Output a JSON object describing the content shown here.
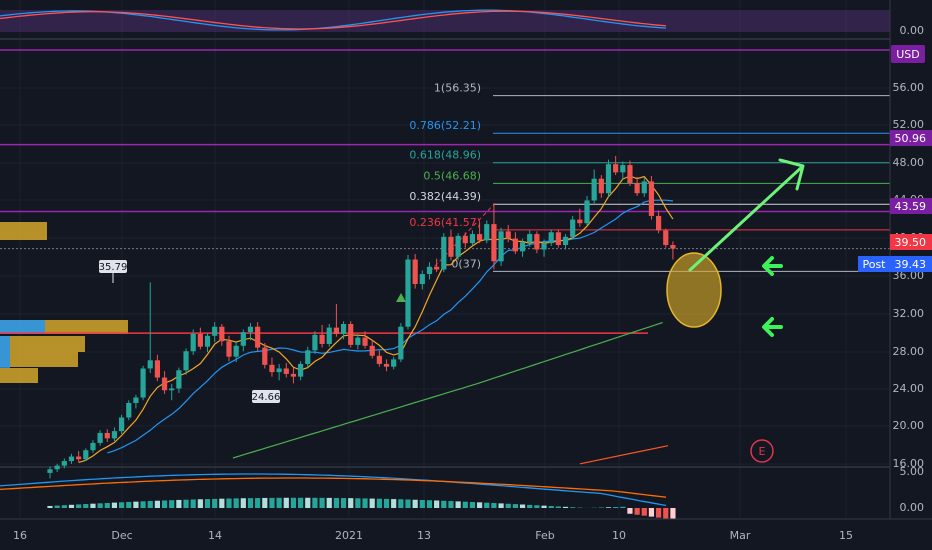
{
  "chart_data": {
    "type": "candlestick",
    "currency": "USD",
    "price_axis_ticks": [
      "56.00",
      "52.00",
      "48.00",
      "44.00",
      "40.00",
      "36.00",
      "32.00",
      "28.00",
      "24.00",
      "20.00",
      "16.00"
    ],
    "date_axis_ticks": [
      "16",
      "Dec",
      "14",
      "2021",
      "13",
      "Feb",
      "10",
      "Mar",
      "15"
    ],
    "oscillator_ticks": [
      "0.00"
    ],
    "macd_ticks": [
      "5.00",
      "0.00"
    ],
    "fib_levels": [
      {
        "label": "1(56.35)",
        "value": 56.35,
        "color": "#b2b5be"
      },
      {
        "label": "0.786(52.21)",
        "value": 52.21,
        "color": "#2196f3"
      },
      {
        "label": "0.618(48.96)",
        "value": 48.96,
        "color": "#26a69a"
      },
      {
        "label": "0.5(46.68)",
        "value": 46.68,
        "color": "#4caf50"
      },
      {
        "label": "0.382(44.39)",
        "value": 44.39,
        "color": "#d1d4dc"
      },
      {
        "label": "0.236(41.57)",
        "value": 41.57,
        "color": "#f23645"
      },
      {
        "label": "0(37)",
        "value": 37.0,
        "color": "#b2b5be"
      }
    ],
    "price_tags": [
      {
        "label": "50.96",
        "value": 50.96,
        "color": "#7b1fa2"
      },
      {
        "label": "43.59",
        "value": 43.59,
        "color": "#7b1fa2"
      },
      {
        "label": "39.50",
        "value": 39.5,
        "color": "#f23645"
      },
      {
        "label": "39.43",
        "value": 39.43,
        "color": "#2962ff",
        "prefix": "Post"
      }
    ],
    "annotations": {
      "high": "35.79",
      "low": "24.66",
      "earnings": "E"
    },
    "candles": [
      [
        14.8,
        15.5,
        14.2,
        15.2
      ],
      [
        15.2,
        15.8,
        14.9,
        15.6
      ],
      [
        15.6,
        16.4,
        15.3,
        16.1
      ],
      [
        16.1,
        16.9,
        15.8,
        16.6
      ],
      [
        16.6,
        17.2,
        16.0,
        16.3
      ],
      [
        16.3,
        17.5,
        16.1,
        17.3
      ],
      [
        17.3,
        18.4,
        17.0,
        18.1
      ],
      [
        18.1,
        19.5,
        17.8,
        19.2
      ],
      [
        19.2,
        19.6,
        18.2,
        18.6
      ],
      [
        18.6,
        19.8,
        18.3,
        19.4
      ],
      [
        19.4,
        21.2,
        19.1,
        20.9
      ],
      [
        20.9,
        22.8,
        20.6,
        22.5
      ],
      [
        22.5,
        23.4,
        21.9,
        23.1
      ],
      [
        23.1,
        26.6,
        22.8,
        26.3
      ],
      [
        26.3,
        35.79,
        25.8,
        27.2
      ],
      [
        27.2,
        27.8,
        24.9,
        25.3
      ],
      [
        25.3,
        26.0,
        23.5,
        23.9
      ],
      [
        23.9,
        24.6,
        22.8,
        24.1
      ],
      [
        24.1,
        26.4,
        23.6,
        26.1
      ],
      [
        26.1,
        28.5,
        25.6,
        28.2
      ],
      [
        28.2,
        30.6,
        27.8,
        30.1
      ],
      [
        30.1,
        30.8,
        28.4,
        28.7
      ],
      [
        28.7,
        30.2,
        28.1,
        29.9
      ],
      [
        29.9,
        31.4,
        29.2,
        30.9
      ],
      [
        30.9,
        31.2,
        28.8,
        29.3
      ],
      [
        29.3,
        29.9,
        27.1,
        27.6
      ],
      [
        27.6,
        29.2,
        27.0,
        28.8
      ],
      [
        28.8,
        30.6,
        28.2,
        30.3
      ],
      [
        30.3,
        31.3,
        29.4,
        30.9
      ],
      [
        30.9,
        31.4,
        28.2,
        28.6
      ],
      [
        28.6,
        29.1,
        26.3,
        26.7
      ],
      [
        26.7,
        27.5,
        25.4,
        25.9
      ],
      [
        25.9,
        26.8,
        25.0,
        26.3
      ],
      [
        26.3,
        26.9,
        25.3,
        25.7
      ],
      [
        25.7,
        26.4,
        24.66,
        25.4
      ],
      [
        25.4,
        27.1,
        25.0,
        26.8
      ],
      [
        26.8,
        28.7,
        26.4,
        28.3
      ],
      [
        28.3,
        30.4,
        27.9,
        30.0
      ],
      [
        30.0,
        31.1,
        28.6,
        29.0
      ],
      [
        29.0,
        31.2,
        28.7,
        30.8
      ],
      [
        30.8,
        33.4,
        29.8,
        30.1
      ],
      [
        30.1,
        31.5,
        29.5,
        31.2
      ],
      [
        31.2,
        31.5,
        28.6,
        28.9
      ],
      [
        28.9,
        30.1,
        28.4,
        29.7
      ],
      [
        29.7,
        30.4,
        28.5,
        28.8
      ],
      [
        28.8,
        29.5,
        27.4,
        27.7
      ],
      [
        27.7,
        28.3,
        26.5,
        26.8
      ],
      [
        26.8,
        27.3,
        26.0,
        26.5
      ],
      [
        26.5,
        27.6,
        26.2,
        27.3
      ],
      [
        27.3,
        31.3,
        27.0,
        30.9
      ],
      [
        30.9,
        38.8,
        30.6,
        38.3
      ],
      [
        38.3,
        38.9,
        35.1,
        35.6
      ],
      [
        35.6,
        37.1,
        35.0,
        36.7
      ],
      [
        36.7,
        38.0,
        36.1,
        37.5
      ],
      [
        37.5,
        38.4,
        36.9,
        37.2
      ],
      [
        37.2,
        41.2,
        36.9,
        40.8
      ],
      [
        40.8,
        41.6,
        38.2,
        38.6
      ],
      [
        38.6,
        41.2,
        38.2,
        40.9
      ],
      [
        40.9,
        41.3,
        39.6,
        40.1
      ],
      [
        40.1,
        41.5,
        39.8,
        41.1
      ],
      [
        41.1,
        42.3,
        40.1,
        40.4
      ],
      [
        40.4,
        42.6,
        40.1,
        42.2
      ],
      [
        42.2,
        44.39,
        37.2,
        38.1
      ],
      [
        38.1,
        41.8,
        37.6,
        41.4
      ],
      [
        41.4,
        42.1,
        40.2,
        40.6
      ],
      [
        40.6,
        41.3,
        38.9,
        39.2
      ],
      [
        39.2,
        40.6,
        38.6,
        40.2
      ],
      [
        40.2,
        41.5,
        39.7,
        41.1
      ],
      [
        41.1,
        41.4,
        39.0,
        39.4
      ],
      [
        39.4,
        40.5,
        38.6,
        40.1
      ],
      [
        40.1,
        41.6,
        39.8,
        41.3
      ],
      [
        41.3,
        41.6,
        39.6,
        39.9
      ],
      [
        39.9,
        41.1,
        39.4,
        40.8
      ],
      [
        40.8,
        43.1,
        40.5,
        42.7
      ],
      [
        42.7,
        43.9,
        41.9,
        42.3
      ],
      [
        42.3,
        45.3,
        42.1,
        44.8
      ],
      [
        44.8,
        48.2,
        44.5,
        47.2
      ],
      [
        47.2,
        47.6,
        45.1,
        45.6
      ],
      [
        45.6,
        49.3,
        45.2,
        48.8
      ],
      [
        48.8,
        49.7,
        47.6,
        47.9
      ],
      [
        47.9,
        49.1,
        47.1,
        48.7
      ],
      [
        48.7,
        49.2,
        46.4,
        46.7
      ],
      [
        46.7,
        47.4,
        45.3,
        45.6
      ],
      [
        45.6,
        47.4,
        45.2,
        46.9
      ],
      [
        46.9,
        47.5,
        42.7,
        43.1
      ],
      [
        43.1,
        43.7,
        41.2,
        41.5
      ],
      [
        41.5,
        41.7,
        39.6,
        39.9
      ],
      [
        39.9,
        40.3,
        38.3,
        39.5
      ]
    ]
  }
}
